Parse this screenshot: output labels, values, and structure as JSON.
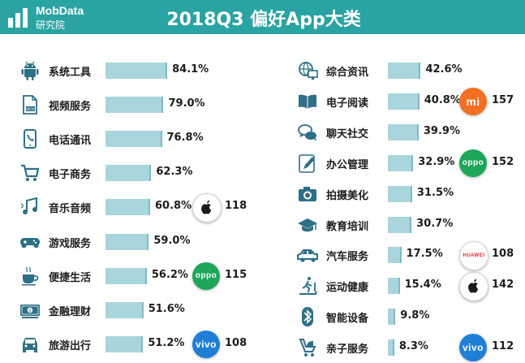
{
  "header": {
    "brand_top": "MobData",
    "brand_bottom": "研究院",
    "title": "2018Q3   偏好App大类"
  },
  "colors": {
    "header_bg": "#2aa3a3",
    "bar": "#a9d5dc",
    "icon": "#2e6f86",
    "oppo": "#1ea65a",
    "vivo": "#1f7fd6",
    "mi": "#f36f21",
    "huawei": "#d81e28",
    "apple_bg": "#ffffff"
  },
  "chart_data": [
    {
      "type": "bar",
      "orientation": "horizontal",
      "unit": "%",
      "categories": [
        "系统工具",
        "视频服务",
        "电话通讯",
        "电子商务",
        "音乐音频",
        "游戏服务",
        "便捷生活",
        "金融理财",
        "旅游出行"
      ],
      "values": [
        84.1,
        79.0,
        76.8,
        62.3,
        60.8,
        59.0,
        56.2,
        51.6,
        51.2
      ],
      "value_labels": [
        "84.1%",
        "79.0%",
        "76.8%",
        "62.3%",
        "60.8%",
        "59.0%",
        "56.2%",
        "51.6%",
        "51.2%"
      ],
      "icons": [
        "android-icon",
        "video-file-icon",
        "phone-icon",
        "shopping-cart-icon",
        "music-note-icon",
        "gamepad-icon",
        "coffee-cup-icon",
        "banknote-icon",
        "car-front-icon"
      ],
      "brand_badges": [
        {
          "row": 4,
          "brand": "apple",
          "count": "118"
        },
        {
          "row": 6,
          "brand": "oppo",
          "text": "oppo",
          "count": "115"
        },
        {
          "row": 8,
          "brand": "vivo",
          "text": "vivo",
          "count": "108"
        }
      ]
    },
    {
      "type": "bar",
      "orientation": "horizontal",
      "unit": "%",
      "categories": [
        "综合资讯",
        "电子阅读",
        "聊天社交",
        "办公管理",
        "拍摄美化",
        "教育培训",
        "汽车服务",
        "运动健康",
        "智能设备",
        "亲子服务"
      ],
      "values": [
        42.6,
        40.8,
        39.9,
        32.9,
        31.5,
        30.7,
        17.5,
        15.4,
        9.8,
        8.3
      ],
      "value_labels": [
        "42.6%",
        "40.8%",
        "39.9%",
        "32.9%",
        "31.5%",
        "30.7%",
        "17.5%",
        "15.4%",
        "9.8%",
        "8.3%"
      ],
      "icons": [
        "globe-monitor-icon",
        "open-book-icon",
        "chat-bubbles-icon",
        "pencil-note-icon",
        "camera-icon",
        "graduation-cap-icon",
        "car-side-icon",
        "treadmill-icon",
        "bluetooth-icon",
        "stroller-icon"
      ],
      "brand_badges": [
        {
          "row": 1,
          "brand": "mi",
          "text": "mi",
          "count": "157"
        },
        {
          "row": 3,
          "brand": "oppo",
          "text": "oppo",
          "count": "152"
        },
        {
          "row": 6,
          "brand": "huawei",
          "text": "HUAWEI",
          "count": "108"
        },
        {
          "row": 7,
          "brand": "apple",
          "count": "142"
        },
        {
          "row": 9,
          "brand": "vivo",
          "text": "vivo",
          "count": "112"
        }
      ]
    }
  ]
}
